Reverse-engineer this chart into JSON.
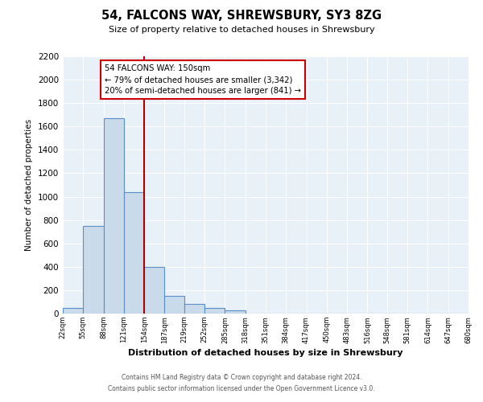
{
  "title": "54, FALCONS WAY, SHREWSBURY, SY3 8ZG",
  "subtitle": "Size of property relative to detached houses in Shrewsbury",
  "xlabel": "Distribution of detached houses by size in Shrewsbury",
  "ylabel": "Number of detached properties",
  "bar_color": "#c9daea",
  "bar_edge_color": "#5b8fc9",
  "bg_color": "#e8f0f8",
  "grid_color": "#ffffff",
  "vline_x": 154,
  "vline_color": "#aa0000",
  "annotation_title": "54 FALCONS WAY: 150sqm",
  "annotation_line1": "← 79% of detached houses are smaller (3,342)",
  "annotation_line2": "20% of semi-detached houses are larger (841) →",
  "annotation_box_color": "#ffffff",
  "annotation_box_edge": "#cc0000",
  "bin_edges": [
    22,
    55,
    88,
    121,
    154,
    187,
    219,
    252,
    285,
    318,
    351,
    384,
    417,
    450,
    483,
    516,
    548,
    581,
    614,
    647,
    680
  ],
  "bar_heights": [
    50,
    750,
    1670,
    1040,
    400,
    150,
    85,
    45,
    25,
    0,
    0,
    0,
    0,
    0,
    0,
    0,
    0,
    0,
    0,
    0
  ],
  "tick_labels": [
    "22sqm",
    "55sqm",
    "88sqm",
    "121sqm",
    "154sqm",
    "187sqm",
    "219sqm",
    "252sqm",
    "285sqm",
    "318sqm",
    "351sqm",
    "384sqm",
    "417sqm",
    "450sqm",
    "483sqm",
    "516sqm",
    "548sqm",
    "581sqm",
    "614sqm",
    "647sqm",
    "680sqm"
  ],
  "ylim": [
    0,
    2200
  ],
  "yticks": [
    0,
    200,
    400,
    600,
    800,
    1000,
    1200,
    1400,
    1600,
    1800,
    2000,
    2200
  ],
  "footer_line1": "Contains HM Land Registry data © Crown copyright and database right 2024.",
  "footer_line2": "Contains public sector information licensed under the Open Government Licence v3.0."
}
